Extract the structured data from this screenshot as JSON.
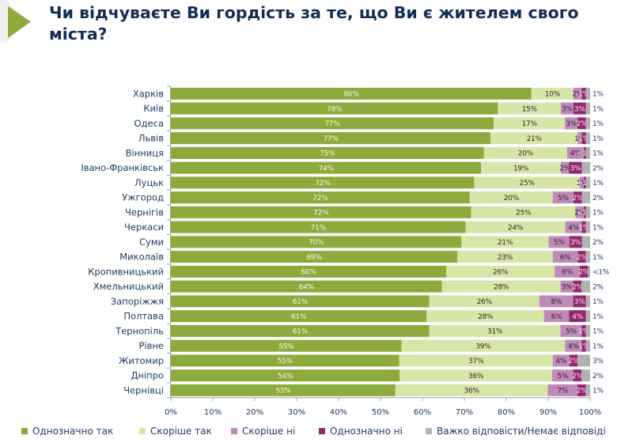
{
  "chart_data": {
    "type": "bar",
    "orientation": "horizontal",
    "stacked": true,
    "title": "Чи відчуваєте Ви гордість за те, що Ви є жителем свого міста?",
    "xlabel": "",
    "ylabel": "",
    "xlim": [
      0,
      100
    ],
    "x_tick_values": [
      0,
      10,
      20,
      30,
      40,
      50,
      60,
      70,
      80,
      90,
      100
    ],
    "x_ticks": [
      "0%",
      "10%",
      "20%",
      "30%",
      "40%",
      "50%",
      "60%",
      "70%",
      "80%",
      "90%",
      "100%"
    ],
    "grid": false,
    "legend_position": "bottom",
    "categories": [
      "Харків",
      "Київ",
      "Одеса",
      "Львів",
      "Вінниця",
      "Івано-Франківськ",
      "Луцьк",
      "Ужгород",
      "Чернігів",
      "Черкаси",
      "Суми",
      "Миколаїв",
      "Кропивницький",
      "Хмельницький",
      "Запоріжжя",
      "Полтава",
      "Тернопіль",
      "Рівне",
      "Житомир",
      "Дніпро",
      "Чернівці"
    ],
    "series": [
      {
        "name": "Однозначно так",
        "color": "#8DAA3C",
        "label_color": "#F4F8E8",
        "values": [
          86,
          78,
          77,
          77,
          75,
          74,
          72,
          72,
          72,
          71,
          70,
          69,
          66,
          64,
          61,
          61,
          61,
          55,
          55,
          54,
          53
        ],
        "labels": [
          "86%",
          "78%",
          "77%",
          "77%",
          "75%",
          "74%",
          "72%",
          "72%",
          "72%",
          "71%",
          "70%",
          "69%",
          "66%",
          "64%",
          "61%",
          "61%",
          "61%",
          "55%",
          "55%",
          "54%",
          "53%"
        ]
      },
      {
        "name": "Скоріше так",
        "color": "#D8E5A8",
        "label_color": "#2A2A2A",
        "values": [
          10,
          15,
          17,
          21,
          20,
          19,
          25,
          20,
          25,
          24,
          21,
          23,
          26,
          28,
          26,
          28,
          31,
          39,
          37,
          36,
          36
        ],
        "labels": [
          "10%",
          "15%",
          "17%",
          "21%",
          "20%",
          "19%",
          "25%",
          "20%",
          "25%",
          "24%",
          "21%",
          "23%",
          "26%",
          "28%",
          "26%",
          "28%",
          "31%",
          "39%",
          "37%",
          "36%",
          "36%"
        ]
      },
      {
        "name": "Скоріше ні",
        "color": "#C08AB8",
        "label_color": "#2A2A2A",
        "values": [
          2,
          3,
          3,
          1,
          4,
          2,
          1,
          5,
          2,
          4,
          5,
          6,
          6,
          3,
          8,
          6,
          5,
          4,
          4,
          5,
          7
        ],
        "labels": [
          "2%",
          "3%",
          "3%",
          "1%",
          "4%",
          "2%",
          "1%",
          "5%",
          "2%",
          "4%",
          "5%",
          "6%",
          "6%",
          "3%",
          "8%",
          "6%",
          "5%",
          "4%",
          "4%",
          "5%",
          "7%"
        ]
      },
      {
        "name": "Однозначно ні",
        "color": "#94286E",
        "label_color": "#F8E1F0",
        "values": [
          1,
          3,
          2,
          1,
          0.5,
          3,
          0.5,
          2,
          0.5,
          1,
          3,
          2,
          2,
          2,
          3,
          4,
          1,
          1,
          2,
          2,
          2
        ],
        "labels": [
          "1%",
          "3%",
          "2%",
          "1%",
          "<1%",
          "3%",
          "<1%",
          "2%",
          "<1%",
          "1%",
          "3%",
          "2%",
          "2%",
          "2%",
          "3%",
          "4%",
          "1%",
          "1%",
          "2%",
          "2%",
          "2%"
        ]
      },
      {
        "name": "Важко відповісти/Немає відповіді",
        "color": "#B2B2B2",
        "label_color": "#1F3A60",
        "values": [
          1,
          1,
          1,
          1,
          1,
          2,
          1,
          2,
          1,
          1,
          2,
          1,
          0.5,
          2,
          1,
          1,
          1,
          1,
          3,
          2,
          1
        ],
        "labels": [
          "1%",
          "1%",
          "1%",
          "1%",
          "1%",
          "2%",
          "1%",
          "2%",
          "1%",
          "1%",
          "2%",
          "1%",
          "<1%",
          "2%",
          "1%",
          "1%",
          "1%",
          "1%",
          "3%",
          "2%",
          "1%"
        ]
      }
    ]
  }
}
